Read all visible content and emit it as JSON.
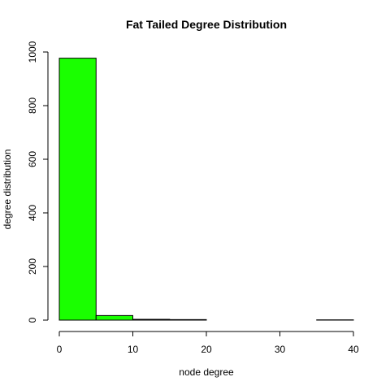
{
  "chart_data": {
    "type": "bar",
    "title": "Fat Tailed Degree Distribution",
    "xlabel": "node degree",
    "ylabel": "degree distribution",
    "bins": [
      {
        "start": 0,
        "end": 5,
        "value": 977
      },
      {
        "start": 5,
        "end": 10,
        "value": 17
      },
      {
        "start": 10,
        "end": 15,
        "value": 3
      },
      {
        "start": 15,
        "end": 20,
        "value": 2
      },
      {
        "start": 20,
        "end": 25,
        "value": 0
      },
      {
        "start": 25,
        "end": 30,
        "value": 0
      },
      {
        "start": 30,
        "end": 35,
        "value": 0
      },
      {
        "start": 35,
        "end": 40,
        "value": 1
      }
    ],
    "xlim": [
      0,
      40
    ],
    "ylim": [
      0,
      1000
    ],
    "x_ticks": [
      0,
      10,
      20,
      30,
      40
    ],
    "y_ticks": [
      0,
      200,
      400,
      600,
      800,
      1000
    ],
    "bar_color": "#1aff00",
    "grid": false,
    "legend": "none"
  }
}
